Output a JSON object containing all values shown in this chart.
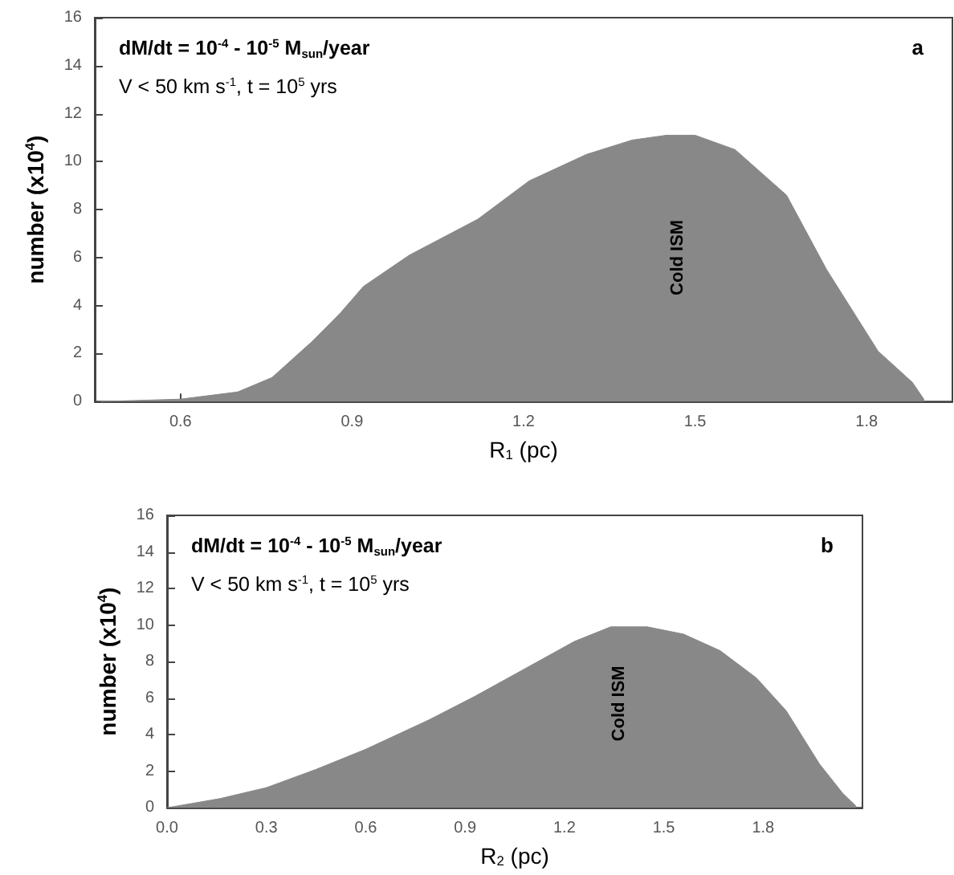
{
  "chart_data": [
    {
      "type": "area",
      "title": "a",
      "xlabel": "R$_{1}$ (pc)",
      "ylabel": "number (x10$^{4}$)",
      "annotations": [
        "dM/dt = 10$^{-4}$ - 10$^{-5}$ M$_{sun}$/year",
        "V < 50 km s$^{-1}$, t = 10$^{5}$ yrs",
        "Cold ISM"
      ],
      "x": [
        0.46,
        0.6,
        0.7,
        0.76,
        0.83,
        0.88,
        0.92,
        1.0,
        1.12,
        1.21,
        1.31,
        1.39,
        1.45,
        1.5,
        1.57,
        1.66,
        1.73,
        1.82,
        1.88,
        1.9,
        1.9
      ],
      "values": [
        0,
        0.1,
        0.4,
        1.0,
        2.5,
        3.7,
        4.8,
        6.1,
        7.6,
        9.2,
        10.3,
        10.9,
        11.1,
        11.1,
        10.5,
        8.6,
        5.5,
        2.1,
        0.8,
        0.1,
        0
      ],
      "color": "#888888",
      "xlim": [
        0.45,
        1.95
      ],
      "xticks": [
        0.6,
        0.9,
        1.2,
        1.5,
        1.8
      ],
      "ylim": [
        0,
        16
      ],
      "yticks": [
        0,
        2,
        4,
        6,
        8,
        10,
        12,
        14,
        16
      ],
      "grid": false
    },
    {
      "type": "area",
      "title": "b",
      "xlabel": "R$_{2}$ (pc)",
      "ylabel": "number (x10$^{4}$)",
      "annotations": [
        "dM/dt = 10$^{-4}$ - 10$^{-5}$ M$_{sun}$/year",
        "V < 50 km s$^{-1}$, t = 10$^{5}$ yrs",
        "Cold ISM"
      ],
      "x": [
        0,
        0.16,
        0.3,
        0.45,
        0.6,
        0.79,
        0.93,
        1.08,
        1.23,
        1.34,
        1.45,
        1.56,
        1.67,
        1.78,
        1.87,
        1.97,
        2.04,
        2.08,
        2.08
      ],
      "values": [
        0,
        0.5,
        1.1,
        2.1,
        3.2,
        4.8,
        6.1,
        7.6,
        9.1,
        9.9,
        9.9,
        9.5,
        8.6,
        7.1,
        5.3,
        2.4,
        0.8,
        0.1,
        0
      ],
      "color": "#888888",
      "xlim": [
        0,
        2.1
      ],
      "xticks": [
        {
          "value": 0,
          "label": "0.0"
        },
        0.3,
        0.6,
        0.9,
        1.2,
        1.5,
        1.8
      ],
      "ylim": [
        0,
        16
      ],
      "yticks": [
        0,
        2,
        4,
        6,
        8,
        10,
        12,
        14,
        16
      ],
      "grid": false
    }
  ]
}
